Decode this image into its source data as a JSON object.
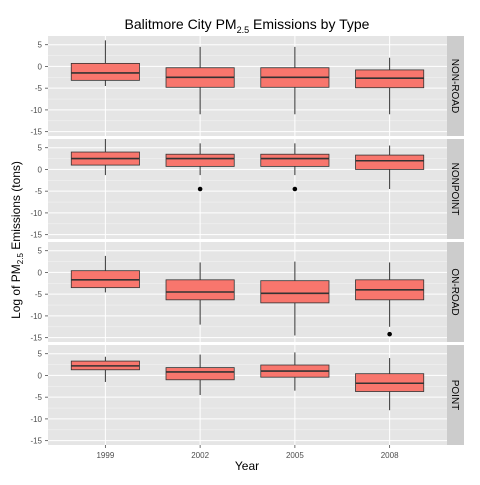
{
  "chart_data": {
    "type": "box",
    "title": {
      "main": "Balitmore City PM",
      "sub": "2.5",
      "rest": " Emissions by Type"
    },
    "xlabel": "Year",
    "ylabel": {
      "pre": "Log of PM",
      "sub": "2.5",
      "post": " Emissions (tons)"
    },
    "categories": [
      "1999",
      "2002",
      "2005",
      "2008"
    ],
    "ylim": [
      -16,
      7
    ],
    "yticks": [
      -15,
      -10,
      -5,
      0,
      5
    ],
    "grid": true,
    "box_fill": "#F8766D",
    "panel_bg": "#E5E5E5",
    "strip_bg": "#CCCCCC",
    "facets": [
      {
        "name": "NON-ROAD",
        "boxes": [
          {
            "category": "1999",
            "lower_whisker": -4.5,
            "q1": -3.2,
            "median": -1.5,
            "q3": 0.7,
            "upper_whisker": 6.0,
            "outliers": []
          },
          {
            "category": "2002",
            "lower_whisker": -11.0,
            "q1": -4.8,
            "median": -2.5,
            "q3": -0.3,
            "upper_whisker": 4.5,
            "outliers": []
          },
          {
            "category": "2005",
            "lower_whisker": -11.0,
            "q1": -4.8,
            "median": -2.5,
            "q3": -0.3,
            "upper_whisker": 4.5,
            "outliers": []
          },
          {
            "category": "2008",
            "lower_whisker": -11.0,
            "q1": -4.9,
            "median": -2.7,
            "q3": -0.8,
            "upper_whisker": 2.0,
            "outliers": []
          }
        ]
      },
      {
        "name": "NONPOINT",
        "boxes": [
          {
            "category": "1999",
            "lower_whisker": -1.3,
            "q1": 1.0,
            "median": 2.5,
            "q3": 4.0,
            "upper_whisker": 7.0,
            "outliers": []
          },
          {
            "category": "2002",
            "lower_whisker": -1.3,
            "q1": 0.7,
            "median": 2.5,
            "q3": 3.5,
            "upper_whisker": 6.0,
            "outliers": [
              -4.5
            ]
          },
          {
            "category": "2005",
            "lower_whisker": -1.3,
            "q1": 0.7,
            "median": 2.5,
            "q3": 3.5,
            "upper_whisker": 6.0,
            "outliers": [
              -4.5
            ]
          },
          {
            "category": "2008",
            "lower_whisker": -4.5,
            "q1": 0.0,
            "median": 2.0,
            "q3": 3.3,
            "upper_whisker": 5.5,
            "outliers": []
          }
        ]
      },
      {
        "name": "ON-ROAD",
        "boxes": [
          {
            "category": "1999",
            "lower_whisker": -4.6,
            "q1": -3.5,
            "median": -1.7,
            "q3": 0.4,
            "upper_whisker": 3.8,
            "outliers": []
          },
          {
            "category": "2002",
            "lower_whisker": -12.0,
            "q1": -6.3,
            "median": -4.5,
            "q3": -1.7,
            "upper_whisker": 2.3,
            "outliers": []
          },
          {
            "category": "2005",
            "lower_whisker": -14.5,
            "q1": -7.0,
            "median": -4.8,
            "q3": -1.9,
            "upper_whisker": 2.5,
            "outliers": []
          },
          {
            "category": "2008",
            "lower_whisker": -12.5,
            "q1": -6.3,
            "median": -4.0,
            "q3": -1.7,
            "upper_whisker": 2.3,
            "outliers": [
              -14.2
            ]
          }
        ]
      },
      {
        "name": "POINT",
        "boxes": [
          {
            "category": "1999",
            "lower_whisker": -1.5,
            "q1": 1.3,
            "median": 2.2,
            "q3": 3.3,
            "upper_whisker": 4.3,
            "outliers": []
          },
          {
            "category": "2002",
            "lower_whisker": -4.5,
            "q1": -1.0,
            "median": 0.8,
            "q3": 1.8,
            "upper_whisker": 4.8,
            "outliers": []
          },
          {
            "category": "2005",
            "lower_whisker": -3.5,
            "q1": -0.4,
            "median": 1.0,
            "q3": 2.4,
            "upper_whisker": 5.3,
            "outliers": []
          },
          {
            "category": "2008",
            "lower_whisker": -8.0,
            "q1": -3.7,
            "median": -1.8,
            "q3": 0.4,
            "upper_whisker": 4.0,
            "outliers": []
          }
        ]
      }
    ]
  }
}
